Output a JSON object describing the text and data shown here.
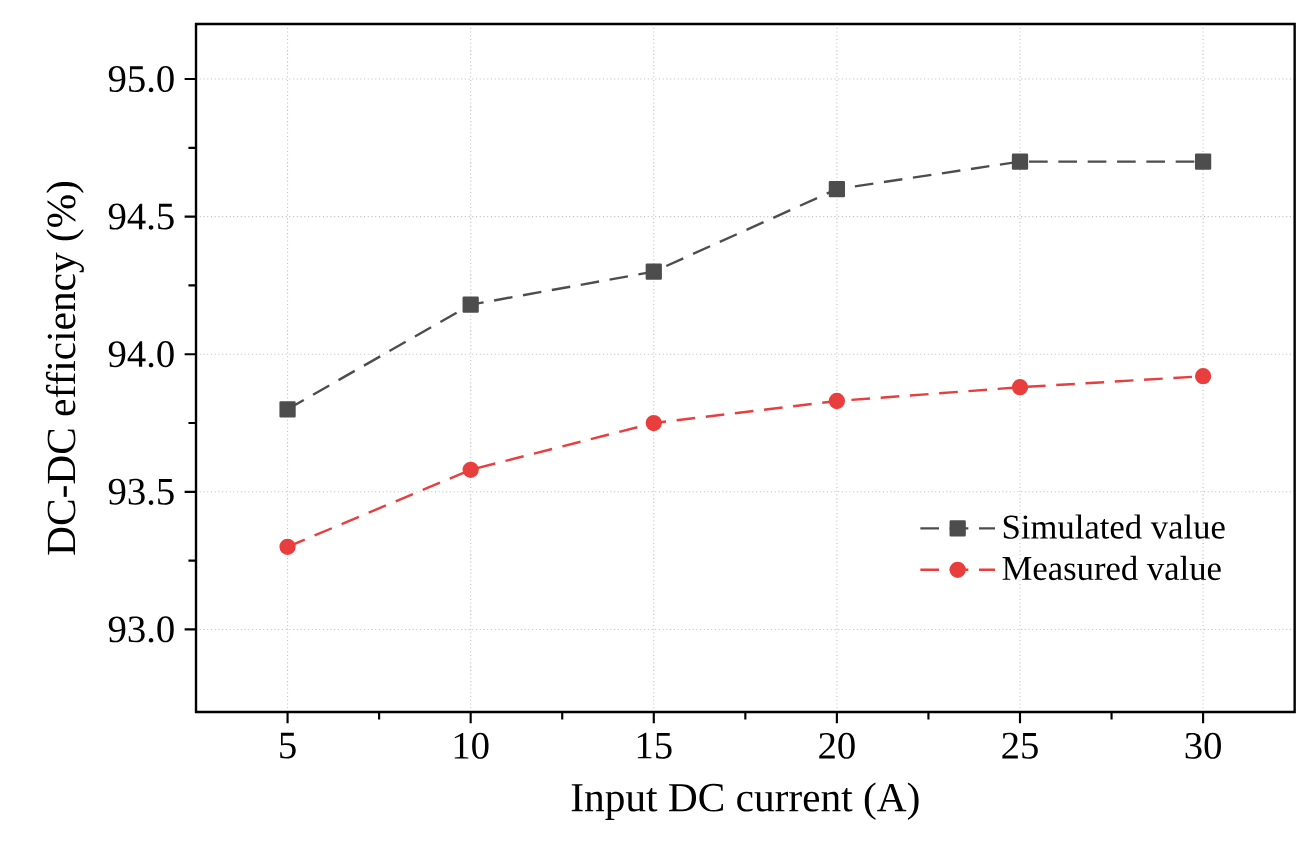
{
  "chart_data": {
    "type": "line",
    "xlabel": "Input DC current (A)",
    "ylabel": "DC-DC efficiency (%)",
    "x": [
      5,
      10,
      15,
      20,
      25,
      30
    ],
    "series": [
      {
        "name": "Simulated value",
        "color": "#4d4d4d",
        "marker": "square",
        "values": [
          93.8,
          94.18,
          94.3,
          94.6,
          94.7,
          94.7
        ]
      },
      {
        "name": "Measured value",
        "color": "#e83e3e",
        "marker": "circle",
        "values": [
          93.3,
          93.58,
          93.75,
          93.83,
          93.88,
          93.92
        ]
      }
    ],
    "xlim": [
      2.5,
      32.5
    ],
    "ylim": [
      92.7,
      95.2
    ],
    "xticks": [
      5,
      10,
      15,
      20,
      25,
      30
    ],
    "yticks": [
      {
        "value": 93,
        "label": "93.0"
      },
      {
        "value": 93.5,
        "label": "93.5"
      },
      {
        "value": 94,
        "label": "94.0"
      },
      {
        "value": 94.5,
        "label": "94.5"
      },
      {
        "value": 95,
        "label": "95.0"
      }
    ],
    "grid": true,
    "legend": "bottom right",
    "line_style": "dashed"
  }
}
